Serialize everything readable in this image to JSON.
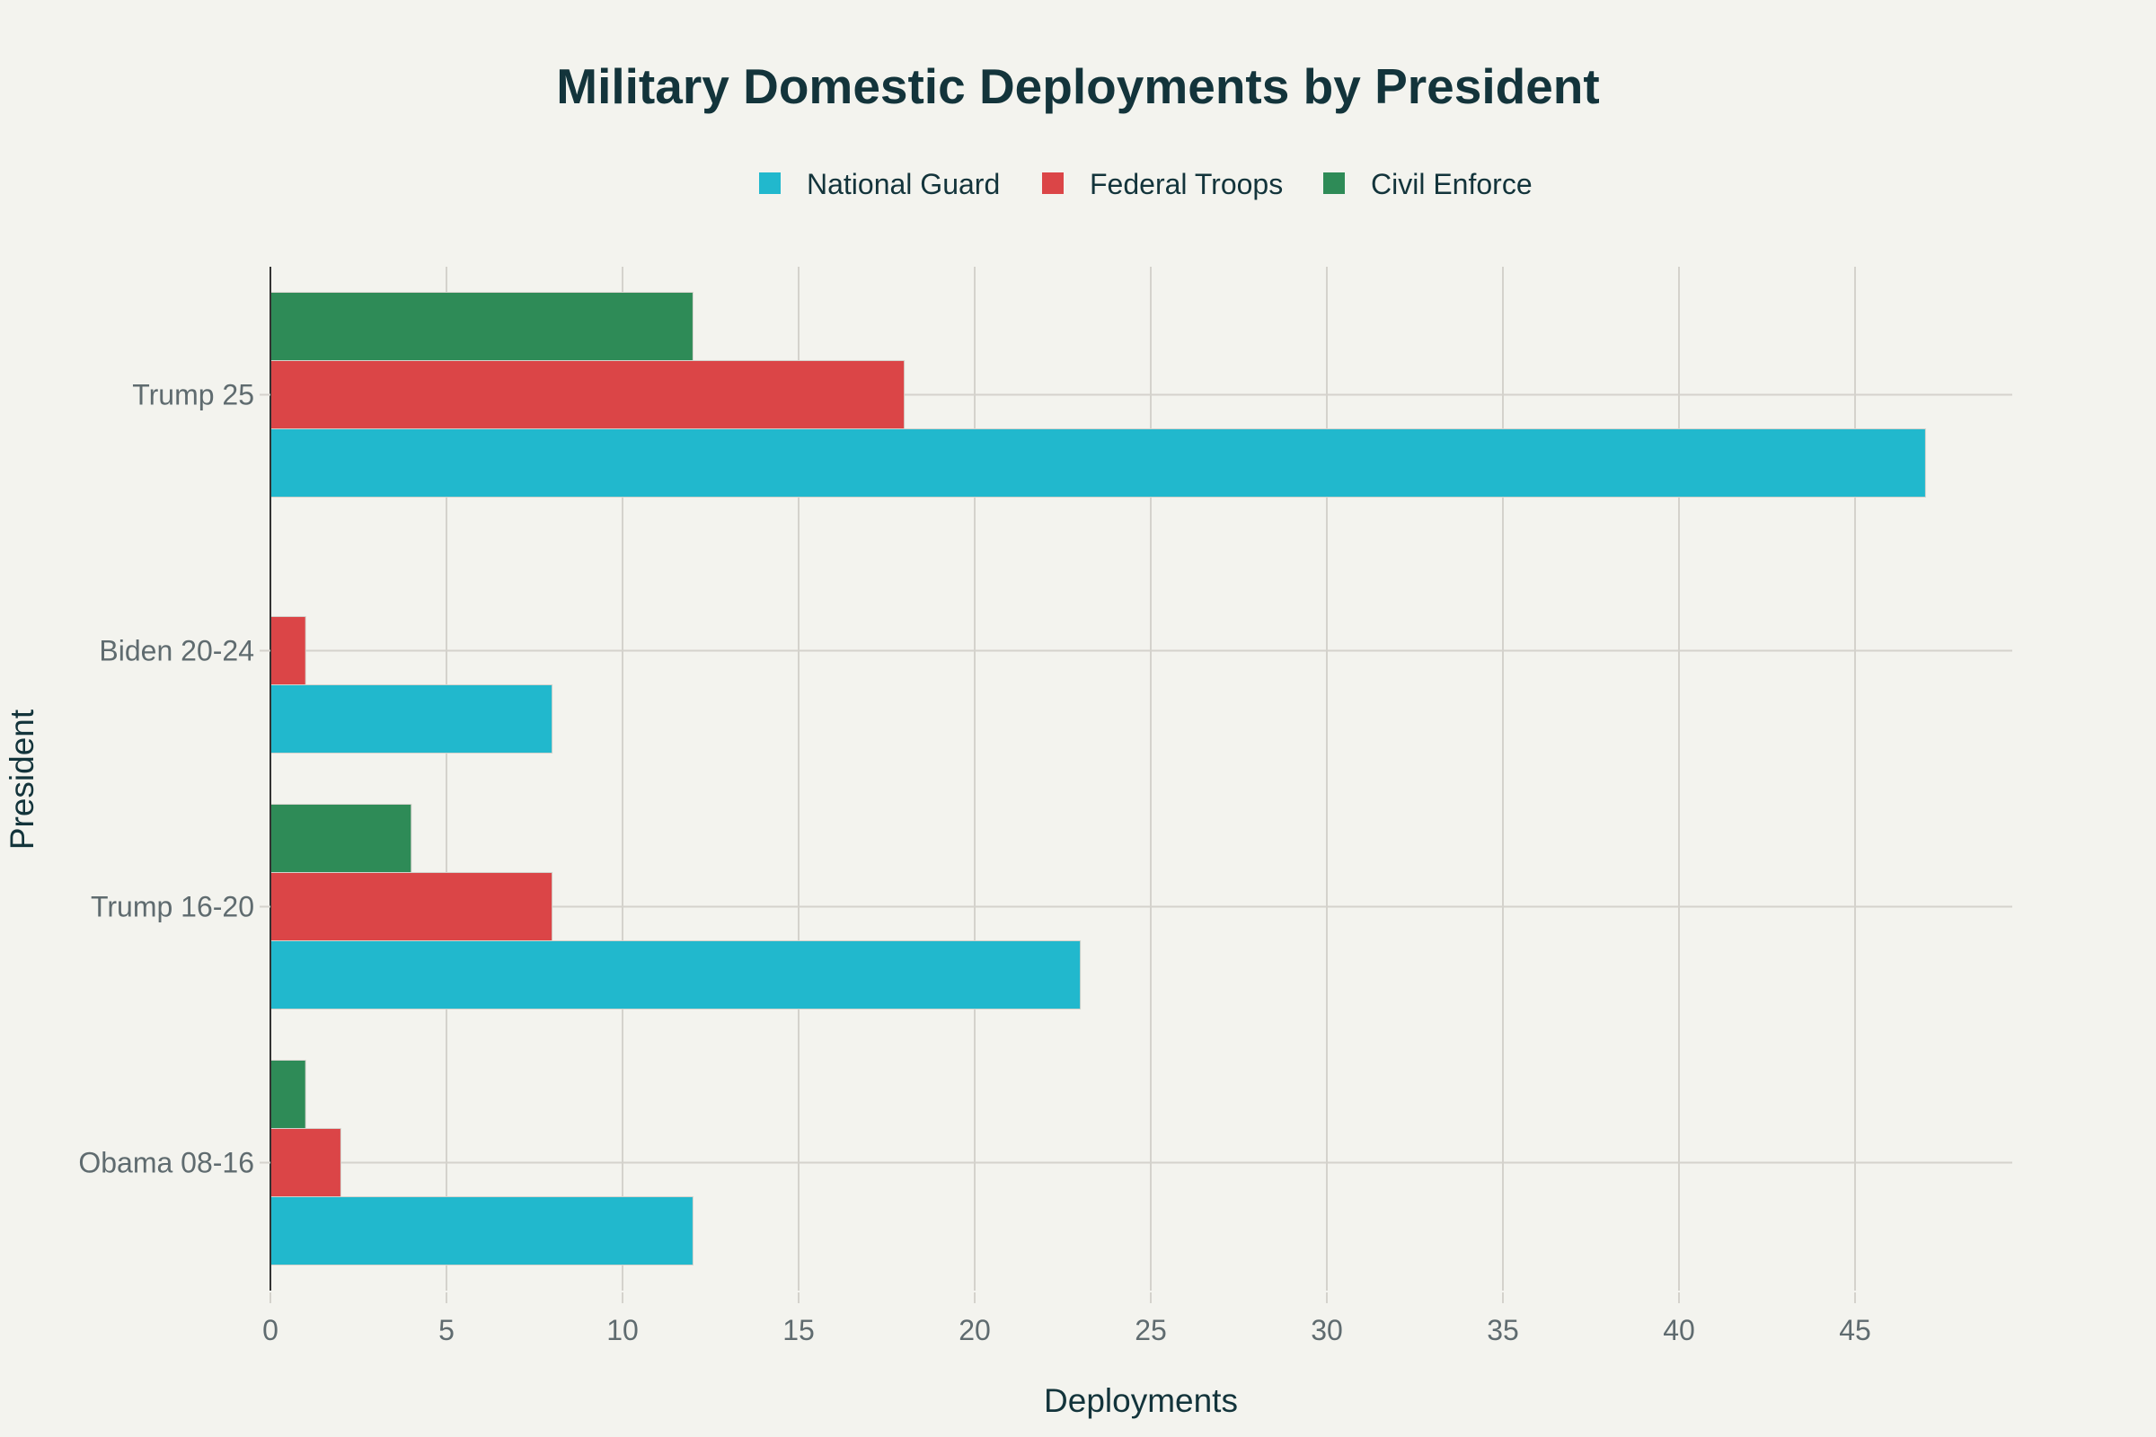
{
  "chart_data": {
    "type": "bar",
    "orientation": "horizontal",
    "title": "Military Domestic Deployments by President",
    "xlabel": "Deployments",
    "ylabel": "President",
    "categories": [
      "Obama 08-16",
      "Trump 16-20",
      "Biden 20-24",
      "Trump 25"
    ],
    "series": [
      {
        "name": "National Guard",
        "color": "#21b8cd",
        "values": [
          12,
          23,
          8,
          47
        ]
      },
      {
        "name": "Federal Troops",
        "color": "#db4547",
        "values": [
          2,
          8,
          1,
          18
        ]
      },
      {
        "name": "Civil Enforce",
        "color": "#2e8b57",
        "values": [
          1,
          4,
          0,
          12
        ]
      }
    ],
    "xlim": [
      0,
      49.5
    ],
    "xticks": [
      0,
      5,
      10,
      15,
      20,
      25,
      30,
      35,
      40,
      45
    ],
    "grid": true,
    "legend_position": "top-center"
  }
}
